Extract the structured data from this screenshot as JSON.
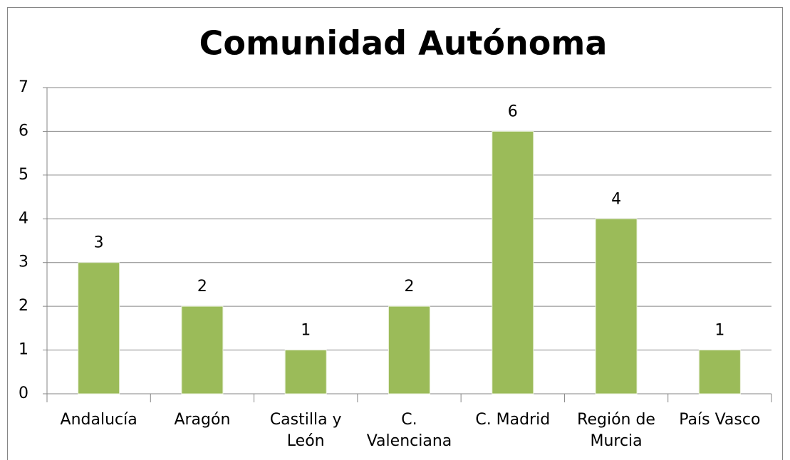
{
  "chart_data": {
    "type": "bar",
    "title": "Comunidad Autónoma",
    "categories": [
      "Andalucía",
      "Aragón",
      "Castilla y León",
      "C. Valenciana",
      "C. Madrid",
      "Región de Murcia",
      "País Vasco"
    ],
    "values": [
      3,
      2,
      1,
      2,
      6,
      4,
      1
    ],
    "color": "#9bbb59",
    "ylim": [
      0,
      7
    ],
    "yticks": [
      0,
      1,
      2,
      3,
      4,
      5,
      6,
      7
    ],
    "grid": true
  }
}
